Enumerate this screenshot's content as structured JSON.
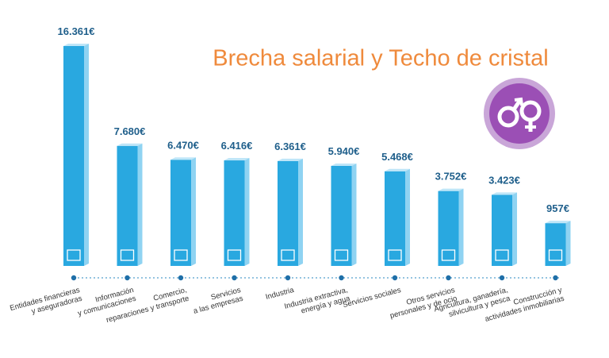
{
  "chart_data": {
    "type": "bar",
    "title": "Brecha salarial y Techo de cristal",
    "categories": [
      "Entidades financieras\ny aseguradoras",
      "Información\ny comunicaciones",
      "Comercio,\nreparaciones y transporte",
      "Servicios\na las empresas",
      "Industria",
      "Industria extractiva,\nenergía y agua",
      "Servicios sociales",
      "Otros servicios\npersonales y de ocio",
      "Agricultura, ganadería,\nsilvicultura y pesca",
      "Construcción y\nactividades inmobiliarias"
    ],
    "values": [
      16361,
      7680,
      6470,
      6416,
      6361,
      5940,
      5468,
      3752,
      3423,
      957
    ],
    "value_labels": [
      "16.361€",
      "7.680€",
      "6.470€",
      "6.416€",
      "6.361€",
      "5.940€",
      "5.468€",
      "3.752€",
      "3.423€",
      "957€"
    ],
    "color": "#29a8e0"
  }
}
